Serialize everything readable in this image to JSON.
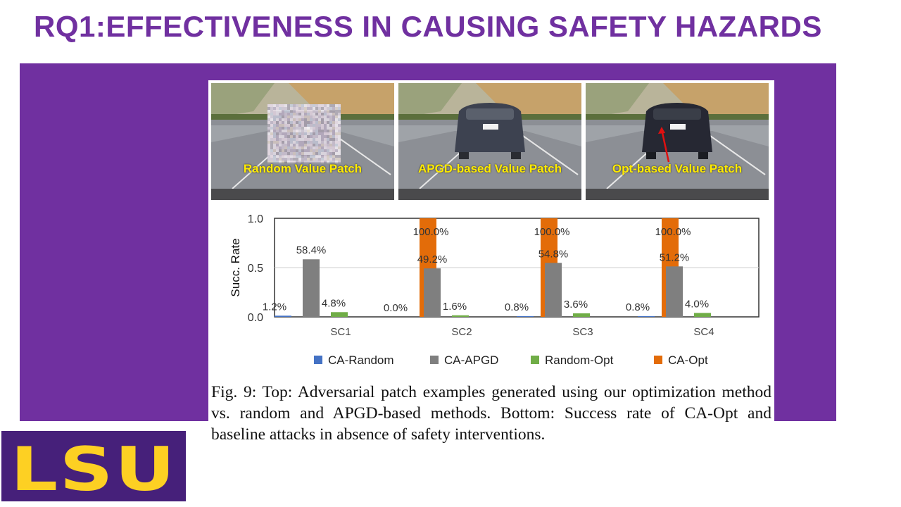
{
  "slide": {
    "title": "RQ1:EFFECTIVENESS IN CAUSING SAFETY HAZARDS",
    "colors": {
      "title": "#7030a0",
      "band": "#7030a0",
      "logo_bg": "#46207a",
      "logo_text": "#fdd023"
    }
  },
  "figure": {
    "panels": [
      {
        "label": "Random Value Patch",
        "patch": "random-noise"
      },
      {
        "label": "APGD-based  Value Patch",
        "patch": "apgd"
      },
      {
        "label": "Opt-based Value Patch",
        "patch": "opt-with-arrow"
      }
    ],
    "caption": "Fig. 9: Top: Adversarial patch examples generated using our optimization method vs. random and APGD-based methods. Bottom: Success rate of CA-Opt and baseline attacks in absence of safety interventions."
  },
  "chart_data": {
    "type": "bar",
    "categories": [
      "SC1",
      "SC2",
      "SC3",
      "SC4"
    ],
    "series": [
      {
        "name": "CA-Random",
        "color": "#4472c4",
        "values": [
          0.012,
          0.0,
          0.008,
          0.008
        ],
        "labels": [
          "1.2%",
          "0.0%",
          "0.8%",
          "0.8%"
        ]
      },
      {
        "name": "CA-APGD",
        "color": "#7f7f7f",
        "values": [
          0.584,
          0.492,
          0.548,
          0.512
        ],
        "labels": [
          "58.4%",
          "49.2%",
          "54.8%",
          "51.2%"
        ]
      },
      {
        "name": "Random-Opt",
        "color": "#70ad47",
        "values": [
          0.048,
          0.016,
          0.036,
          0.04
        ],
        "labels": [
          "4.8%",
          "1.6%",
          "3.6%",
          "4.0%"
        ]
      },
      {
        "name": "CA-Opt",
        "color": "#e36c09",
        "values": [
          1.0,
          1.0,
          1.0,
          1.0
        ],
        "labels": [
          "100.0%",
          "100.0%",
          "100.0%",
          "100.0%"
        ]
      }
    ],
    "ylabel": "Succ. Rate",
    "xlabel": "",
    "ylim": [
      0,
      1.0
    ],
    "yticks": [
      "0.0",
      "0.5",
      "1.0"
    ],
    "ytick_values": [
      0,
      0.5,
      1.0
    ],
    "grid": true,
    "legend": "bottom"
  },
  "logo": {
    "text": "LSU"
  }
}
